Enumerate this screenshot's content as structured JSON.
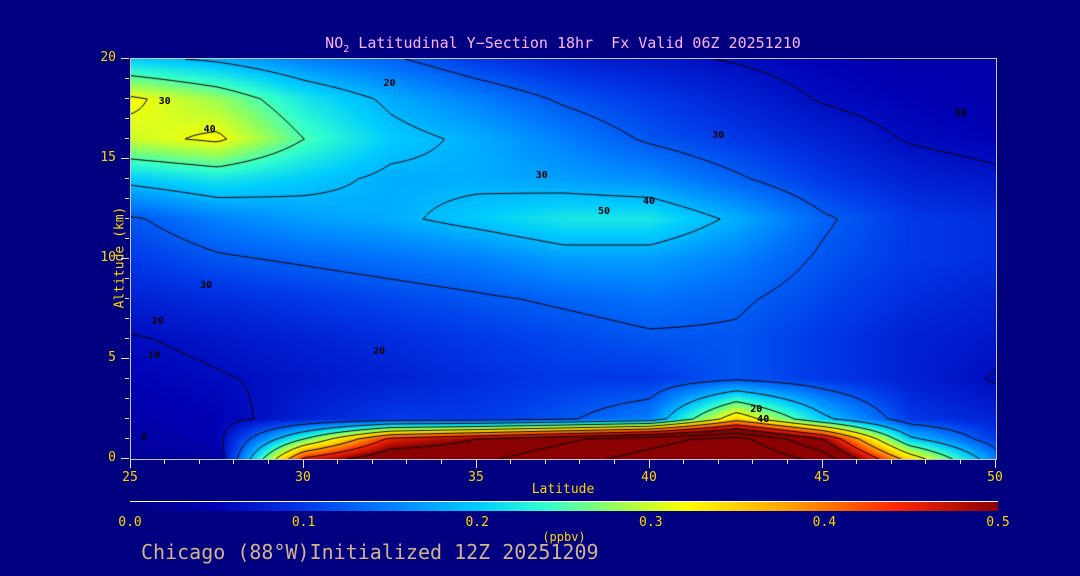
{
  "colors": {
    "background": "#000080",
    "title_text": "#ffb3ff",
    "axis_text": "#ffd700",
    "footer_text": "#d2b48c",
    "contour_line": "#000000"
  },
  "title": {
    "prefix": "NO",
    "sub": "2",
    "rest": " Latitudinal Y−Section 18hr  Fx Valid 06Z 20251210"
  },
  "footer": {
    "text": "Chicago (88°W)Initialized 12Z 20251209"
  },
  "chart_data": {
    "type": "heatmap",
    "title": "NO2 Latitudinal Y-Section 18hr  Fx Valid 06Z 20251210",
    "xlabel": "Latitude",
    "ylabel": "Altitude (km)",
    "colorbar_label": "(ppbv)",
    "xlim": [
      25,
      50
    ],
    "ylim": [
      0,
      20
    ],
    "x_ticks": [
      25,
      30,
      35,
      40,
      45,
      50
    ],
    "y_ticks": [
      0,
      5,
      10,
      15,
      20
    ],
    "x": [
      25,
      27.5,
      30,
      32.5,
      35,
      37.5,
      40,
      42.5,
      45,
      47.5,
      50
    ],
    "y": [
      0,
      1,
      2,
      4,
      6,
      8,
      10,
      12,
      14,
      16,
      18,
      20
    ],
    "values": [
      [
        0.02,
        0.03,
        0.45,
        0.55,
        0.55,
        0.6,
        0.65,
        0.7,
        0.6,
        0.35,
        0.15
      ],
      [
        0.03,
        0.05,
        0.25,
        0.45,
        0.5,
        0.55,
        0.6,
        0.65,
        0.5,
        0.2,
        0.1
      ],
      [
        0.04,
        0.05,
        0.08,
        0.1,
        0.1,
        0.12,
        0.15,
        0.35,
        0.2,
        0.1,
        0.08
      ],
      [
        0.05,
        0.06,
        0.07,
        0.08,
        0.09,
        0.1,
        0.1,
        0.12,
        0.1,
        0.08,
        0.06
      ],
      [
        0.06,
        0.07,
        0.08,
        0.09,
        0.1,
        0.11,
        0.12,
        0.12,
        0.1,
        0.08,
        0.07
      ],
      [
        0.08,
        0.09,
        0.1,
        0.11,
        0.12,
        0.13,
        0.14,
        0.13,
        0.11,
        0.09,
        0.08
      ],
      [
        0.1,
        0.12,
        0.13,
        0.14,
        0.15,
        0.17,
        0.17,
        0.15,
        0.12,
        0.1,
        0.09
      ],
      [
        0.12,
        0.15,
        0.17,
        0.18,
        0.2,
        0.22,
        0.22,
        0.18,
        0.13,
        0.1,
        0.09
      ],
      [
        0.2,
        0.22,
        0.2,
        0.18,
        0.18,
        0.17,
        0.16,
        0.13,
        0.1,
        0.08,
        0.07
      ],
      [
        0.3,
        0.32,
        0.25,
        0.2,
        0.18,
        0.15,
        0.12,
        0.1,
        0.08,
        0.06,
        0.05
      ],
      [
        0.32,
        0.28,
        0.22,
        0.18,
        0.15,
        0.12,
        0.1,
        0.08,
        0.06,
        0.05,
        0.04
      ],
      [
        0.2,
        0.18,
        0.15,
        0.13,
        0.1,
        0.08,
        0.07,
        0.06,
        0.05,
        0.04,
        0.04
      ]
    ],
    "colormap": [
      {
        "v": 0.0,
        "c": "#000080"
      },
      {
        "v": 0.05,
        "c": "#0000b4"
      },
      {
        "v": 0.1,
        "c": "#0038e8"
      },
      {
        "v": 0.15,
        "c": "#0080ff"
      },
      {
        "v": 0.2,
        "c": "#00ccff"
      },
      {
        "v": 0.24,
        "c": "#33ffcc"
      },
      {
        "v": 0.28,
        "c": "#99ff55"
      },
      {
        "v": 0.32,
        "c": "#ffff00"
      },
      {
        "v": 0.38,
        "c": "#ffa000"
      },
      {
        "v": 0.44,
        "c": "#ff2800"
      },
      {
        "v": 0.5,
        "c": "#8b0000"
      }
    ],
    "colorbar_ticks": [
      "0.0",
      "0.1",
      "0.2",
      "0.3",
      "0.4",
      "0.5"
    ],
    "contours": {
      "color": "#000000",
      "scale": 160,
      "levels": [
        10,
        20,
        30,
        40,
        50,
        60,
        70,
        80,
        90,
        100
      ],
      "labels": [
        {
          "t": "30",
          "lat": 26.0,
          "alt": 17.8
        },
        {
          "t": "40",
          "lat": 27.3,
          "alt": 16.4
        },
        {
          "t": "20",
          "lat": 32.5,
          "alt": 18.7
        },
        {
          "t": "30",
          "lat": 36.9,
          "alt": 14.1
        },
        {
          "t": "30",
          "lat": 42.0,
          "alt": 16.1
        },
        {
          "t": "40",
          "lat": 40.0,
          "alt": 12.8
        },
        {
          "t": "50",
          "lat": 38.7,
          "alt": 12.3
        },
        {
          "t": "50",
          "lat": 49.0,
          "alt": 17.2
        },
        {
          "t": "30",
          "lat": 27.2,
          "alt": 8.6
        },
        {
          "t": "20",
          "lat": 25.8,
          "alt": 6.8
        },
        {
          "t": "10",
          "lat": 25.7,
          "alt": 5.1
        },
        {
          "t": "20",
          "lat": 32.2,
          "alt": 5.3
        },
        {
          "t": "0",
          "lat": 25.5,
          "alt": 1.0
        },
        {
          "t": "20",
          "lat": 43.1,
          "alt": 2.4
        },
        {
          "t": "40",
          "lat": 43.3,
          "alt": 1.9
        }
      ]
    }
  }
}
